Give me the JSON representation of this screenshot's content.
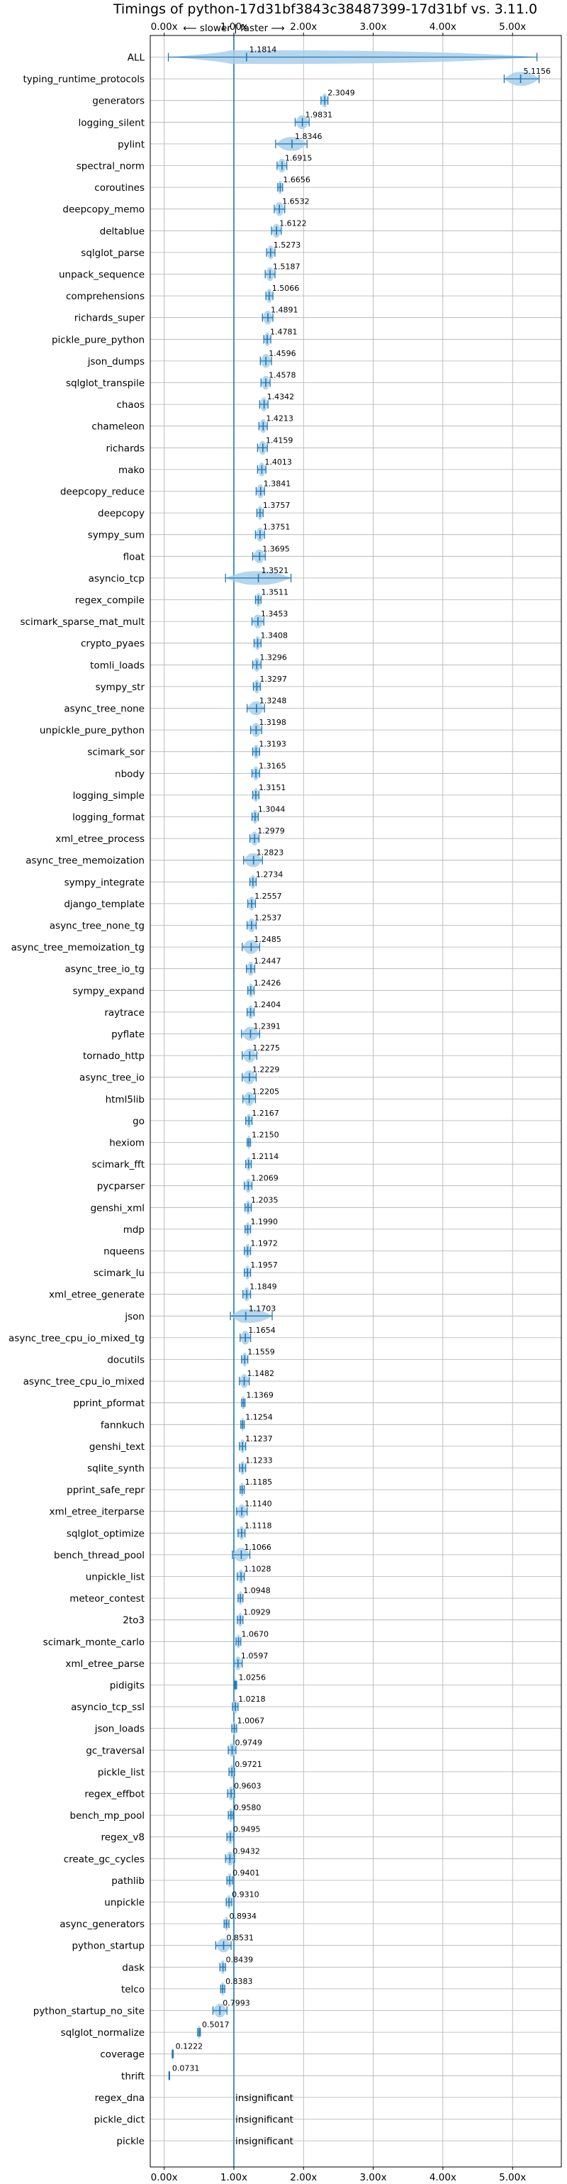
{
  "chart_data": {
    "type": "violin",
    "title": "Timings of python-17d31bf3843c38487399-17d31bf vs. 3.11.0",
    "direction_note": "⟵ slower | faster ⟶",
    "x_ticks": [
      "0.00x",
      "1.00x",
      "2.00x",
      "3.00x",
      "4.00x",
      "5.00x"
    ],
    "x_tick_values": [
      0,
      1,
      2,
      3,
      4,
      5
    ],
    "xlim": [
      -0.2,
      5.7
    ],
    "reference_line": 1.0,
    "grid": true,
    "colors": {
      "violin": "#a8cfea",
      "median": "#1f77b4",
      "whisker": "#1f77b4",
      "mean_marker": "#d62728",
      "grid": "#b0b0b0",
      "refline": "#1f77b4"
    },
    "insignificant_label": "insignificant",
    "benchmarks": [
      {
        "name": "ALL",
        "value": 1.1814,
        "label": "1.1814",
        "lo": 0.06,
        "hi": 5.35,
        "width": 0.45
      },
      {
        "name": "typing_runtime_protocols",
        "value": 5.1156,
        "label": "5.1156",
        "lo": 4.88,
        "hi": 5.38
      },
      {
        "name": "generators",
        "value": 2.3049,
        "label": "2.3049",
        "lo": 2.25,
        "hi": 2.35
      },
      {
        "name": "logging_silent",
        "value": 1.9831,
        "label": "1.9831",
        "lo": 1.88,
        "hi": 2.08
      },
      {
        "name": "pylint",
        "value": 1.8346,
        "label": "1.8346",
        "lo": 1.6,
        "hi": 2.05
      },
      {
        "name": "spectral_norm",
        "value": 1.6915,
        "label": "1.6915",
        "lo": 1.62,
        "hi": 1.76
      },
      {
        "name": "coroutines",
        "value": 1.6656,
        "label": "1.6656",
        "lo": 1.63,
        "hi": 1.7
      },
      {
        "name": "deepcopy_memo",
        "value": 1.6532,
        "label": "1.6532",
        "lo": 1.58,
        "hi": 1.73
      },
      {
        "name": "deltablue",
        "value": 1.6122,
        "label": "1.6122",
        "lo": 1.54,
        "hi": 1.68
      },
      {
        "name": "sqlglot_parse",
        "value": 1.5273,
        "label": "1.5273",
        "lo": 1.47,
        "hi": 1.59
      },
      {
        "name": "unpack_sequence",
        "value": 1.5187,
        "label": "1.5187",
        "lo": 1.45,
        "hi": 1.59
      },
      {
        "name": "comprehensions",
        "value": 1.5066,
        "label": "1.5066",
        "lo": 1.46,
        "hi": 1.56
      },
      {
        "name": "richards_super",
        "value": 1.4891,
        "label": "1.4891",
        "lo": 1.41,
        "hi": 1.56
      },
      {
        "name": "pickle_pure_python",
        "value": 1.4781,
        "label": "1.4781",
        "lo": 1.43,
        "hi": 1.53
      },
      {
        "name": "json_dumps",
        "value": 1.4596,
        "label": "1.4596",
        "lo": 1.38,
        "hi": 1.54
      },
      {
        "name": "sqlglot_transpile",
        "value": 1.4578,
        "label": "1.4578",
        "lo": 1.39,
        "hi": 1.52
      },
      {
        "name": "chaos",
        "value": 1.4342,
        "label": "1.4342",
        "lo": 1.37,
        "hi": 1.49
      },
      {
        "name": "chameleon",
        "value": 1.4213,
        "label": "1.4213",
        "lo": 1.36,
        "hi": 1.48
      },
      {
        "name": "richards",
        "value": 1.4159,
        "label": "1.4159",
        "lo": 1.34,
        "hi": 1.48
      },
      {
        "name": "mako",
        "value": 1.4013,
        "label": "1.4013",
        "lo": 1.34,
        "hi": 1.46
      },
      {
        "name": "deepcopy_reduce",
        "value": 1.3841,
        "label": "1.3841",
        "lo": 1.32,
        "hi": 1.44
      },
      {
        "name": "deepcopy",
        "value": 1.3757,
        "label": "1.3757",
        "lo": 1.33,
        "hi": 1.42
      },
      {
        "name": "sympy_sum",
        "value": 1.3751,
        "label": "1.3751",
        "lo": 1.31,
        "hi": 1.44
      },
      {
        "name": "float",
        "value": 1.3695,
        "label": "1.3695",
        "lo": 1.27,
        "hi": 1.45
      },
      {
        "name": "asyncio_tcp",
        "value": 1.3521,
        "label": "1.3521",
        "lo": 0.88,
        "hi": 1.82,
        "width": 0.4
      },
      {
        "name": "regex_compile",
        "value": 1.3511,
        "label": "1.3511",
        "lo": 1.31,
        "hi": 1.39
      },
      {
        "name": "scimark_sparse_mat_mult",
        "value": 1.3453,
        "label": "1.3453",
        "lo": 1.26,
        "hi": 1.43
      },
      {
        "name": "crypto_pyaes",
        "value": 1.3408,
        "label": "1.3408",
        "lo": 1.29,
        "hi": 1.39
      },
      {
        "name": "tomli_loads",
        "value": 1.3296,
        "label": "1.3296",
        "lo": 1.27,
        "hi": 1.39
      },
      {
        "name": "sympy_str",
        "value": 1.3297,
        "label": "1.3297",
        "lo": 1.28,
        "hi": 1.38
      },
      {
        "name": "async_tree_none",
        "value": 1.3248,
        "label": "1.3248",
        "lo": 1.19,
        "hi": 1.44
      },
      {
        "name": "unpickle_pure_python",
        "value": 1.3198,
        "label": "1.3198",
        "lo": 1.24,
        "hi": 1.4
      },
      {
        "name": "scimark_sor",
        "value": 1.3193,
        "label": "1.3193",
        "lo": 1.27,
        "hi": 1.37
      },
      {
        "name": "nbody",
        "value": 1.3165,
        "label": "1.3165",
        "lo": 1.26,
        "hi": 1.37
      },
      {
        "name": "logging_simple",
        "value": 1.3151,
        "label": "1.3151",
        "lo": 1.27,
        "hi": 1.36
      },
      {
        "name": "logging_format",
        "value": 1.3044,
        "label": "1.3044",
        "lo": 1.26,
        "hi": 1.35
      },
      {
        "name": "xml_etree_process",
        "value": 1.2979,
        "label": "1.2979",
        "lo": 1.23,
        "hi": 1.36
      },
      {
        "name": "async_tree_memoization",
        "value": 1.2823,
        "label": "1.2823",
        "lo": 1.14,
        "hi": 1.41
      },
      {
        "name": "sympy_integrate",
        "value": 1.2734,
        "label": "1.2734",
        "lo": 1.23,
        "hi": 1.32
      },
      {
        "name": "django_template",
        "value": 1.2557,
        "label": "1.2557",
        "lo": 1.2,
        "hi": 1.31
      },
      {
        "name": "async_tree_none_tg",
        "value": 1.2537,
        "label": "1.2537",
        "lo": 1.19,
        "hi": 1.32
      },
      {
        "name": "async_tree_memoization_tg",
        "value": 1.2485,
        "label": "1.2485",
        "lo": 1.12,
        "hi": 1.37
      },
      {
        "name": "async_tree_io_tg",
        "value": 1.2447,
        "label": "1.2447",
        "lo": 1.18,
        "hi": 1.3
      },
      {
        "name": "sympy_expand",
        "value": 1.2426,
        "label": "1.2426",
        "lo": 1.2,
        "hi": 1.29
      },
      {
        "name": "raytrace",
        "value": 1.2404,
        "label": "1.2404",
        "lo": 1.19,
        "hi": 1.29
      },
      {
        "name": "pyflate",
        "value": 1.2391,
        "label": "1.2391",
        "lo": 1.11,
        "hi": 1.37
      },
      {
        "name": "tornado_http",
        "value": 1.2275,
        "label": "1.2275",
        "lo": 1.12,
        "hi": 1.33
      },
      {
        "name": "async_tree_io",
        "value": 1.2229,
        "label": "1.2229",
        "lo": 1.12,
        "hi": 1.32
      },
      {
        "name": "html5lib",
        "value": 1.2205,
        "label": "1.2205",
        "lo": 1.13,
        "hi": 1.31
      },
      {
        "name": "go",
        "value": 1.2167,
        "label": "1.2167",
        "lo": 1.17,
        "hi": 1.26
      },
      {
        "name": "hexiom",
        "value": 1.215,
        "label": "1.2150",
        "lo": 1.19,
        "hi": 1.24
      },
      {
        "name": "scimark_fft",
        "value": 1.2114,
        "label": "1.2114",
        "lo": 1.17,
        "hi": 1.25
      },
      {
        "name": "pycparser",
        "value": 1.2069,
        "label": "1.2069",
        "lo": 1.15,
        "hi": 1.26
      },
      {
        "name": "genshi_xml",
        "value": 1.2035,
        "label": "1.2035",
        "lo": 1.16,
        "hi": 1.25
      },
      {
        "name": "mdp",
        "value": 1.199,
        "label": "1.1990",
        "lo": 1.16,
        "hi": 1.24
      },
      {
        "name": "nqueens",
        "value": 1.1972,
        "label": "1.1972",
        "lo": 1.15,
        "hi": 1.24
      },
      {
        "name": "scimark_lu",
        "value": 1.1957,
        "label": "1.1957",
        "lo": 1.15,
        "hi": 1.24
      },
      {
        "name": "xml_etree_generate",
        "value": 1.1849,
        "label": "1.1849",
        "lo": 1.13,
        "hi": 1.24
      },
      {
        "name": "json",
        "value": 1.1703,
        "label": "1.1703",
        "lo": 0.95,
        "hi": 1.55,
        "width": 0.35
      },
      {
        "name": "async_tree_cpu_io_mixed_tg",
        "value": 1.1654,
        "label": "1.1654",
        "lo": 1.09,
        "hi": 1.24
      },
      {
        "name": "docutils",
        "value": 1.1559,
        "label": "1.1559",
        "lo": 1.11,
        "hi": 1.2
      },
      {
        "name": "async_tree_cpu_io_mixed",
        "value": 1.1482,
        "label": "1.1482",
        "lo": 1.08,
        "hi": 1.22
      },
      {
        "name": "pprint_pformat",
        "value": 1.1369,
        "label": "1.1369",
        "lo": 1.11,
        "hi": 1.16
      },
      {
        "name": "fannkuch",
        "value": 1.1254,
        "label": "1.1254",
        "lo": 1.1,
        "hi": 1.15
      },
      {
        "name": "genshi_text",
        "value": 1.1237,
        "label": "1.1237",
        "lo": 1.08,
        "hi": 1.17
      },
      {
        "name": "sqlite_synth",
        "value": 1.1233,
        "label": "1.1233",
        "lo": 1.08,
        "hi": 1.17
      },
      {
        "name": "pprint_safe_repr",
        "value": 1.1185,
        "label": "1.1185",
        "lo": 1.09,
        "hi": 1.15
      },
      {
        "name": "xml_etree_iterparse",
        "value": 1.114,
        "label": "1.1140",
        "lo": 1.04,
        "hi": 1.19
      },
      {
        "name": "sqlglot_optimize",
        "value": 1.1118,
        "label": "1.1118",
        "lo": 1.06,
        "hi": 1.16
      },
      {
        "name": "bench_thread_pool",
        "value": 1.1066,
        "label": "1.1066",
        "lo": 0.98,
        "hi": 1.23
      },
      {
        "name": "unpickle_list",
        "value": 1.1028,
        "label": "1.1028",
        "lo": 1.05,
        "hi": 1.15
      },
      {
        "name": "meteor_contest",
        "value": 1.0948,
        "label": "1.0948",
        "lo": 1.06,
        "hi": 1.13
      },
      {
        "name": "2to3",
        "value": 1.0929,
        "label": "1.0929",
        "lo": 1.05,
        "hi": 1.13
      },
      {
        "name": "scimark_monte_carlo",
        "value": 1.067,
        "label": "1.0670",
        "lo": 1.03,
        "hi": 1.1
      },
      {
        "name": "xml_etree_parse",
        "value": 1.0597,
        "label": "1.0597",
        "lo": 1.0,
        "hi": 1.12
      },
      {
        "name": "pidigits",
        "value": 1.0256,
        "label": "1.0256",
        "lo": 1.01,
        "hi": 1.04
      },
      {
        "name": "asyncio_tcp_ssl",
        "value": 1.0218,
        "label": "1.0218",
        "lo": 0.98,
        "hi": 1.06
      },
      {
        "name": "json_loads",
        "value": 1.0067,
        "label": "1.0067",
        "lo": 0.97,
        "hi": 1.04
      },
      {
        "name": "gc_traversal",
        "value": 0.9749,
        "label": "0.9749",
        "lo": 0.92,
        "hi": 1.03
      },
      {
        "name": "pickle_list",
        "value": 0.9721,
        "label": "0.9721",
        "lo": 0.93,
        "hi": 1.01
      },
      {
        "name": "regex_effbot",
        "value": 0.9603,
        "label": "0.9603",
        "lo": 0.91,
        "hi": 1.01
      },
      {
        "name": "bench_mp_pool",
        "value": 0.958,
        "label": "0.9580",
        "lo": 0.92,
        "hi": 0.99
      },
      {
        "name": "regex_v8",
        "value": 0.9495,
        "label": "0.9495",
        "lo": 0.9,
        "hi": 1.0
      },
      {
        "name": "create_gc_cycles",
        "value": 0.9432,
        "label": "0.9432",
        "lo": 0.88,
        "hi": 1.01
      },
      {
        "name": "pathlib",
        "value": 0.9401,
        "label": "0.9401",
        "lo": 0.9,
        "hi": 0.98
      },
      {
        "name": "unpickle",
        "value": 0.931,
        "label": "0.9310",
        "lo": 0.89,
        "hi": 0.97
      },
      {
        "name": "async_generators",
        "value": 0.8934,
        "label": "0.8934",
        "lo": 0.86,
        "hi": 0.93
      },
      {
        "name": "python_startup",
        "value": 0.8531,
        "label": "0.8531",
        "lo": 0.74,
        "hi": 0.96
      },
      {
        "name": "dask",
        "value": 0.8439,
        "label": "0.8439",
        "lo": 0.8,
        "hi": 0.88
      },
      {
        "name": "telco",
        "value": 0.8383,
        "label": "0.8383",
        "lo": 0.81,
        "hi": 0.87
      },
      {
        "name": "python_startup_no_site",
        "value": 0.7993,
        "label": "0.7993",
        "lo": 0.7,
        "hi": 0.9
      },
      {
        "name": "sqlglot_normalize",
        "value": 0.5017,
        "label": "0.5017",
        "lo": 0.48,
        "hi": 0.52
      },
      {
        "name": "coverage",
        "value": 0.1222,
        "label": "0.1222",
        "lo": 0.115,
        "hi": 0.13
      },
      {
        "name": "thrift",
        "value": 0.0731,
        "label": "0.0731",
        "lo": 0.068,
        "hi": 0.078
      },
      {
        "name": "regex_dna",
        "value": null,
        "label": null
      },
      {
        "name": "pickle_dict",
        "value": null,
        "label": null
      },
      {
        "name": "pickle",
        "value": null,
        "label": null
      }
    ]
  }
}
